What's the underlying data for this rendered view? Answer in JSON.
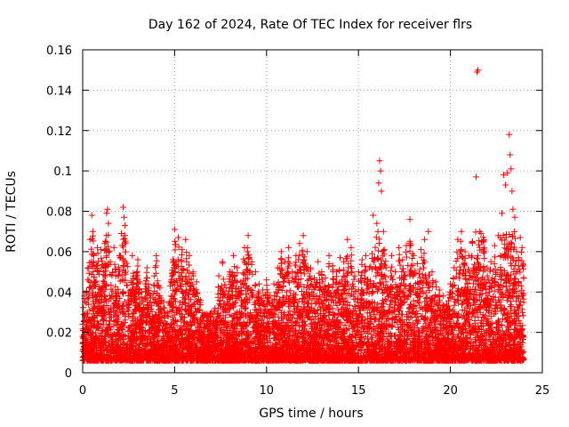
{
  "chart_data": {
    "type": "scatter",
    "title": "Day 162 of 2024, Rate Of TEC Index for receiver flrs",
    "xlabel": "GPS time / hours",
    "ylabel": "ROTI / TECUs",
    "xlim": [
      0,
      25
    ],
    "ylim": [
      0,
      0.16
    ],
    "xticks": [
      0,
      5,
      10,
      15,
      20,
      25
    ],
    "xtick_labels": [
      "0",
      "5",
      "10",
      "15",
      "20",
      "25"
    ],
    "yticks": [
      0,
      0.02,
      0.04,
      0.06,
      0.08,
      0.1,
      0.12,
      0.14,
      0.16
    ],
    "ytick_labels": [
      "0",
      "0.02",
      "0.04",
      "0.06",
      "0.08",
      "0.1",
      "0.12",
      "0.14",
      "0.16"
    ],
    "grid": true,
    "marker": "+",
    "color": "#ff0000",
    "series": [
      {
        "name": "ROTI",
        "points": [
          [
            0.0,
            0.024
          ],
          [
            0.1,
            0.038
          ],
          [
            0.2,
            0.02
          ],
          [
            0.3,
            0.052
          ],
          [
            0.4,
            0.066
          ],
          [
            0.5,
            0.078
          ],
          [
            0.55,
            0.07
          ],
          [
            0.6,
            0.058
          ],
          [
            0.7,
            0.045
          ],
          [
            0.8,
            0.062
          ],
          [
            0.9,
            0.05
          ],
          [
            1.0,
            0.061
          ],
          [
            1.2,
            0.064
          ],
          [
            1.3,
            0.079
          ],
          [
            1.35,
            0.081
          ],
          [
            1.4,
            0.074
          ],
          [
            1.5,
            0.055
          ],
          [
            1.7,
            0.062
          ],
          [
            1.8,
            0.048
          ],
          [
            2.0,
            0.058
          ],
          [
            2.1,
            0.069
          ],
          [
            2.2,
            0.082
          ],
          [
            2.25,
            0.077
          ],
          [
            2.3,
            0.073
          ],
          [
            2.5,
            0.04
          ],
          [
            2.7,
            0.058
          ],
          [
            2.9,
            0.048
          ],
          [
            3.0,
            0.056
          ],
          [
            3.2,
            0.04
          ],
          [
            3.4,
            0.044
          ],
          [
            3.5,
            0.052
          ],
          [
            3.7,
            0.037
          ],
          [
            3.9,
            0.048
          ],
          [
            4.0,
            0.058
          ],
          [
            4.2,
            0.042
          ],
          [
            4.4,
            0.035
          ],
          [
            4.6,
            0.03
          ],
          [
            4.8,
            0.034
          ],
          [
            5.0,
            0.071
          ],
          [
            5.2,
            0.067
          ],
          [
            5.4,
            0.061
          ],
          [
            5.6,
            0.066
          ],
          [
            5.8,
            0.058
          ],
          [
            6.0,
            0.05
          ],
          [
            6.2,
            0.045
          ],
          [
            6.4,
            0.036
          ],
          [
            6.6,
            0.028
          ],
          [
            6.8,
            0.026
          ],
          [
            7.0,
            0.03
          ],
          [
            7.2,
            0.032
          ],
          [
            7.4,
            0.048
          ],
          [
            7.6,
            0.055
          ],
          [
            7.8,
            0.042
          ],
          [
            8.0,
            0.05
          ],
          [
            8.2,
            0.058
          ],
          [
            8.4,
            0.052
          ],
          [
            8.6,
            0.045
          ],
          [
            8.8,
            0.062
          ],
          [
            9.0,
            0.068
          ],
          [
            9.2,
            0.055
          ],
          [
            9.4,
            0.05
          ],
          [
            9.6,
            0.044
          ],
          [
            9.8,
            0.041
          ],
          [
            10.0,
            0.046
          ],
          [
            10.2,
            0.038
          ],
          [
            10.4,
            0.044
          ],
          [
            10.6,
            0.052
          ],
          [
            10.8,
            0.06
          ],
          [
            11.0,
            0.055
          ],
          [
            11.2,
            0.062
          ],
          [
            11.4,
            0.05
          ],
          [
            11.6,
            0.058
          ],
          [
            11.8,
            0.064
          ],
          [
            12.0,
            0.068
          ],
          [
            12.2,
            0.06
          ],
          [
            12.4,
            0.052
          ],
          [
            12.6,
            0.047
          ],
          [
            12.8,
            0.055
          ],
          [
            13.0,
            0.05
          ],
          [
            13.2,
            0.047
          ],
          [
            13.4,
            0.058
          ],
          [
            13.6,
            0.053
          ],
          [
            13.8,
            0.05
          ],
          [
            14.0,
            0.057
          ],
          [
            14.2,
            0.055
          ],
          [
            14.4,
            0.066
          ],
          [
            14.6,
            0.062
          ],
          [
            14.8,
            0.048
          ],
          [
            15.0,
            0.05
          ],
          [
            15.2,
            0.056
          ],
          [
            15.4,
            0.058
          ],
          [
            15.6,
            0.052
          ],
          [
            15.8,
            0.078
          ],
          [
            16.0,
            0.074
          ],
          [
            16.1,
            0.094
          ],
          [
            16.15,
            0.105
          ],
          [
            16.2,
            0.1
          ],
          [
            16.25,
            0.09
          ],
          [
            16.3,
            0.06
          ],
          [
            16.5,
            0.052
          ],
          [
            16.8,
            0.058
          ],
          [
            17.0,
            0.05
          ],
          [
            17.2,
            0.062
          ],
          [
            17.4,
            0.056
          ],
          [
            17.6,
            0.063
          ],
          [
            17.8,
            0.076
          ],
          [
            18.0,
            0.058
          ],
          [
            18.2,
            0.054
          ],
          [
            18.4,
            0.061
          ],
          [
            18.6,
            0.066
          ],
          [
            18.8,
            0.07
          ],
          [
            19.0,
            0.05
          ],
          [
            19.2,
            0.045
          ],
          [
            19.4,
            0.041
          ],
          [
            19.6,
            0.038
          ],
          [
            19.8,
            0.034
          ],
          [
            20.0,
            0.044
          ],
          [
            20.2,
            0.052
          ],
          [
            20.4,
            0.066
          ],
          [
            20.6,
            0.07
          ],
          [
            20.8,
            0.06
          ],
          [
            21.0,
            0.058
          ],
          [
            21.2,
            0.065
          ],
          [
            21.4,
            0.097
          ],
          [
            21.45,
            0.149
          ],
          [
            21.5,
            0.15
          ],
          [
            21.6,
            0.07
          ],
          [
            21.8,
            0.06
          ],
          [
            22.0,
            0.052
          ],
          [
            22.2,
            0.055
          ],
          [
            22.4,
            0.063
          ],
          [
            22.6,
            0.068
          ],
          [
            22.8,
            0.079
          ],
          [
            22.9,
            0.098
          ],
          [
            23.0,
            0.093
          ],
          [
            23.1,
            0.099
          ],
          [
            23.2,
            0.118
          ],
          [
            23.25,
            0.108
          ],
          [
            23.3,
            0.101
          ],
          [
            23.35,
            0.09
          ],
          [
            23.4,
            0.081
          ],
          [
            23.5,
            0.077
          ],
          [
            23.6,
            0.06
          ],
          [
            23.7,
            0.057
          ],
          [
            23.8,
            0.067
          ],
          [
            23.9,
            0.062
          ]
        ]
      }
    ]
  }
}
